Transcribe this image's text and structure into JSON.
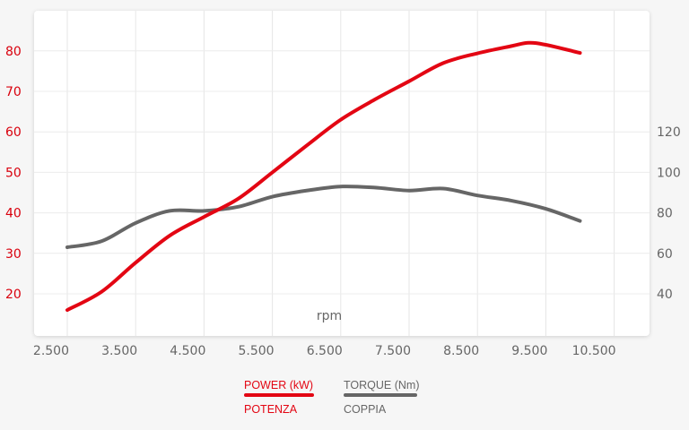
{
  "chart_data": {
    "type": "line",
    "xlabel": "rpm",
    "x_ticks": [
      "2.500",
      "3.500",
      "4.500",
      "5.500",
      "6.500",
      "7.500",
      "8.500",
      "9.500",
      "10.500"
    ],
    "xlim": [
      2500,
      10500
    ],
    "y_left": {
      "ticks": [
        "20",
        "30",
        "40",
        "50",
        "60",
        "70",
        "80"
      ],
      "range": [
        10,
        90
      ],
      "color": "#d9000d"
    },
    "y_right": {
      "ticks": [
        "40",
        "60",
        "80",
        "100",
        "120"
      ],
      "range": [
        20,
        180
      ],
      "color": "#666666"
    },
    "grid": true,
    "legend_placement": "bottom",
    "series": [
      {
        "name": "POWER (kW)",
        "subname": "POTENZA",
        "axis": "left",
        "color": "#e30613",
        "x": [
          2500,
          3000,
          3500,
          4000,
          4500,
          5000,
          5500,
          6000,
          6500,
          7000,
          7500,
          8000,
          8500,
          9000,
          9250,
          9500,
          10000
        ],
        "y": [
          16,
          20.5,
          27.7,
          34.4,
          39,
          43.5,
          50,
          56.6,
          63,
          68,
          72.5,
          77,
          79.4,
          81.2,
          82,
          81.5,
          79.5
        ]
      },
      {
        "name": "TORQUE (Nm)",
        "subname": "COPPIA",
        "axis": "right",
        "color": "#666666",
        "x": [
          2500,
          3000,
          3500,
          4000,
          4500,
          5000,
          5500,
          6000,
          6500,
          7000,
          7500,
          8000,
          8500,
          9000,
          9500,
          10000
        ],
        "y": [
          63,
          66,
          75,
          81,
          81,
          83,
          88,
          91,
          93,
          92.5,
          91,
          92,
          88.6,
          86,
          82,
          76
        ]
      }
    ]
  }
}
